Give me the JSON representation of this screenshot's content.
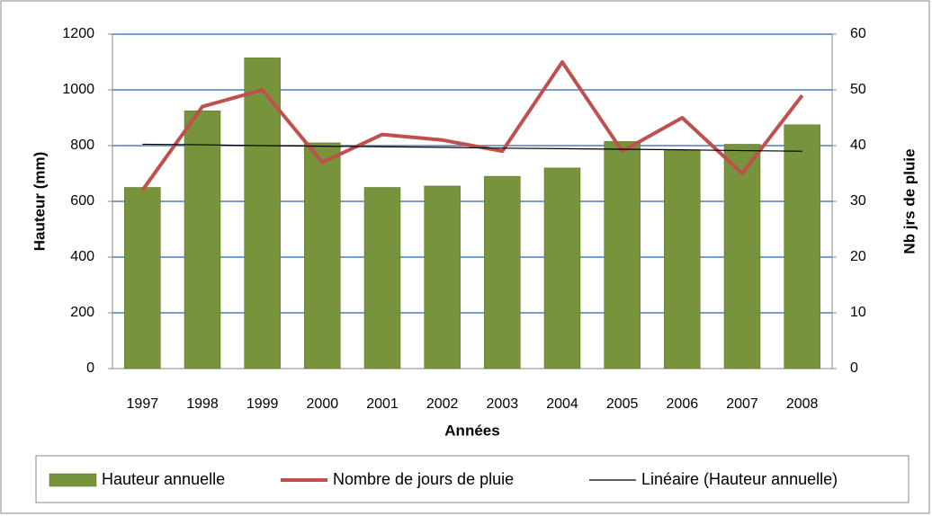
{
  "chart_data": {
    "type": "bar",
    "categories": [
      "1997",
      "1998",
      "1999",
      "2000",
      "2001",
      "2002",
      "2003",
      "2004",
      "2005",
      "2006",
      "2007",
      "2008"
    ],
    "series": [
      {
        "name": "Hauteur annuelle",
        "type": "bar",
        "color": "#77933c",
        "values": [
          650,
          925,
          1115,
          810,
          650,
          655,
          690,
          720,
          815,
          785,
          805,
          875
        ]
      },
      {
        "name": "Nombre de jours de pluie",
        "type": "line",
        "axis": "y2",
        "color": "#c0504d",
        "values": [
          32,
          47,
          50,
          37,
          42,
          41,
          39,
          55,
          39,
          45,
          35,
          49
        ]
      },
      {
        "name": "Linéaire (Hauteur annuelle)",
        "type": "line",
        "color": "#000000",
        "values": [
          805,
          803,
          800,
          798,
          796,
          794,
          791,
          789,
          787,
          785,
          782,
          780
        ]
      }
    ],
    "xlabel": "Années",
    "ylabel": "Hauteur (mm)",
    "y2label": "Nb jrs de pluie",
    "ylim": [
      0,
      1200
    ],
    "yticks": [
      0,
      200,
      400,
      600,
      800,
      1000,
      1200
    ],
    "y2lim": [
      0,
      60
    ],
    "y2ticks": [
      0,
      10,
      20,
      30,
      40,
      50,
      60
    ],
    "grid": true,
    "legend": "bottom"
  }
}
